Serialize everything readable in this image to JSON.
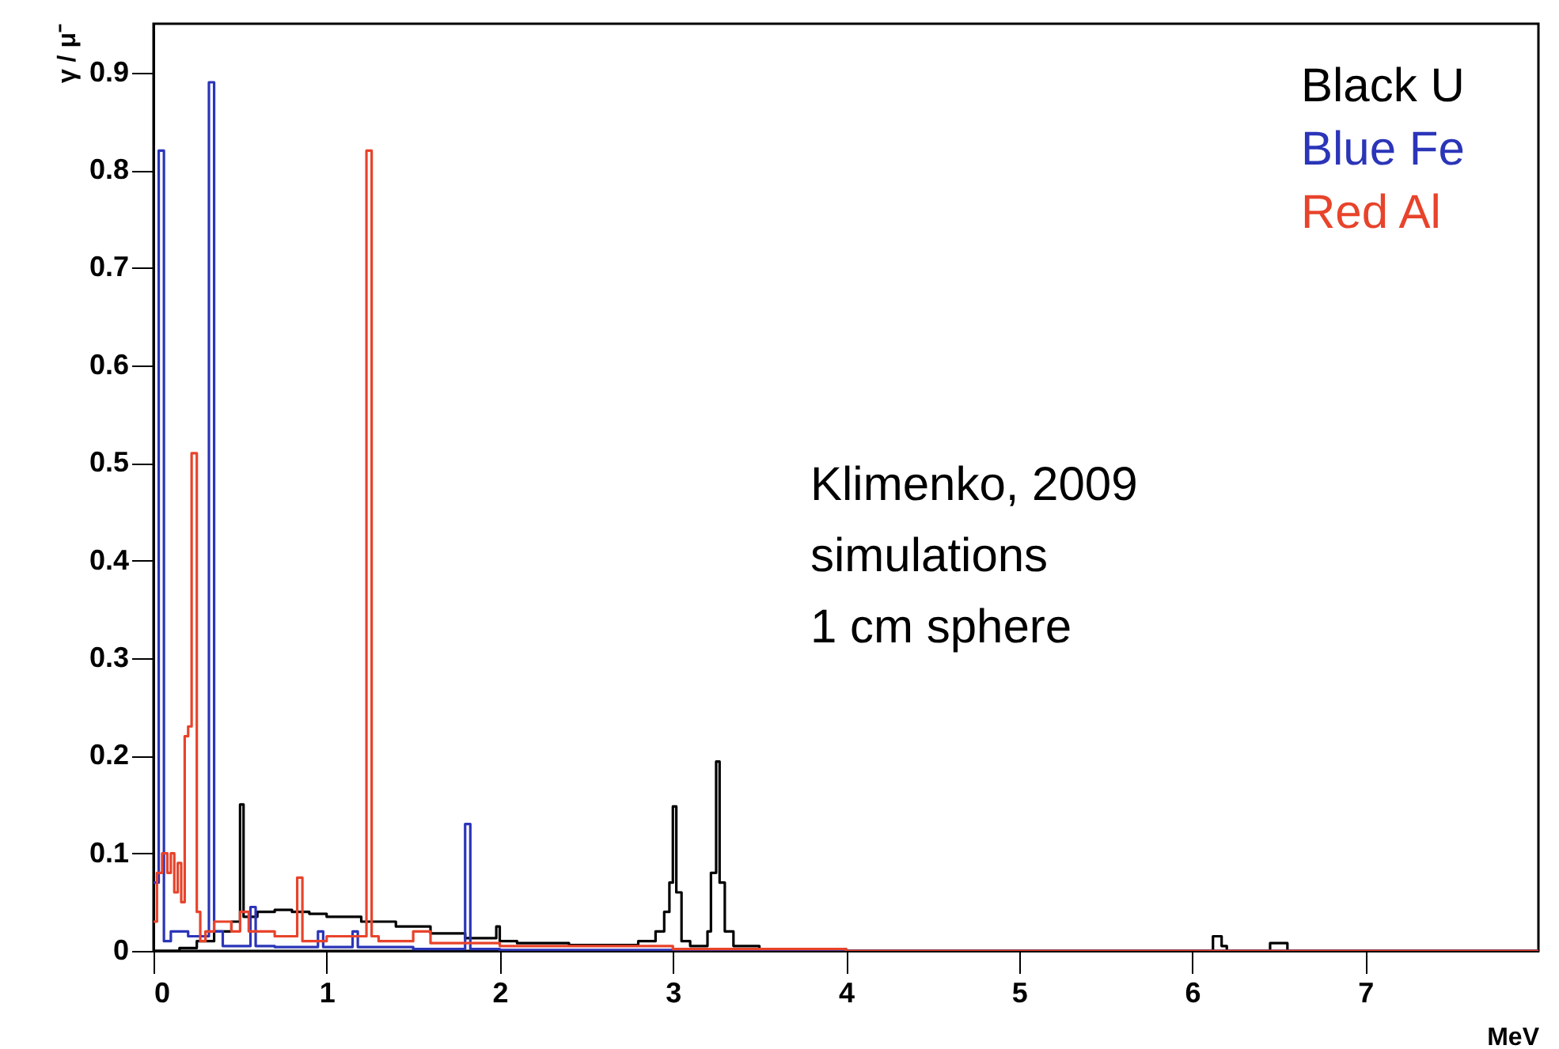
{
  "chart_data": {
    "type": "step",
    "xlabel": "MeV",
    "ylabel": "γ / μ⁻",
    "xlim": [
      0,
      8
    ],
    "xticks": [
      0,
      1,
      2,
      3,
      4,
      5,
      6,
      7
    ],
    "ylim": [
      0,
      0.95
    ],
    "yticks": [
      0,
      0.1,
      0.2,
      0.3,
      0.4,
      0.5,
      0.6,
      0.7,
      0.8,
      0.9
    ],
    "grid": false,
    "legend": "top right",
    "annotations": [
      "Klimenko, 2009",
      "simulations",
      "1 cm sphere"
    ],
    "series": [
      {
        "name": "Black U",
        "color": "#000000",
        "x": [
          0,
          0.15,
          0.25,
          0.35,
          0.45,
          0.5,
          0.52,
          0.6,
          0.7,
          0.8,
          0.9,
          1.0,
          1.2,
          1.4,
          1.6,
          1.8,
          1.98,
          2.0,
          2.1,
          2.4,
          2.8,
          2.9,
          2.95,
          2.98,
          3.0,
          3.02,
          3.05,
          3.1,
          3.2,
          3.22,
          3.25,
          3.27,
          3.3,
          3.35,
          3.5,
          4.0,
          6.12,
          6.17,
          6.2,
          6.45,
          6.5,
          6.55,
          8
        ],
        "values": [
          0,
          0.003,
          0.01,
          0.02,
          0.03,
          0.15,
          0.035,
          0.04,
          0.042,
          0.04,
          0.038,
          0.035,
          0.03,
          0.025,
          0.018,
          0.013,
          0.025,
          0.01,
          0.008,
          0.006,
          0.01,
          0.02,
          0.04,
          0.07,
          0.148,
          0.06,
          0.01,
          0.005,
          0.02,
          0.08,
          0.194,
          0.07,
          0.02,
          0.005,
          0.002,
          0,
          0.015,
          0.005,
          0,
          0.008,
          0.008,
          0,
          0
        ]
      },
      {
        "name": "Blue Fe",
        "color": "#2b35b8",
        "x": [
          0,
          0.03,
          0.06,
          0.1,
          0.2,
          0.32,
          0.35,
          0.4,
          0.56,
          0.59,
          0.7,
          0.95,
          0.98,
          1.15,
          1.18,
          1.5,
          1.8,
          1.83,
          2.0,
          4.0,
          8
        ],
        "values": [
          0.07,
          0.82,
          0.01,
          0.02,
          0.015,
          0.89,
          0.02,
          0.005,
          0.045,
          0.005,
          0.004,
          0.02,
          0.004,
          0.02,
          0.004,
          0.002,
          0.13,
          0.002,
          0.001,
          0,
          0
        ]
      },
      {
        "name": "Red Al",
        "color": "#e8432b",
        "x": [
          0,
          0.02,
          0.05,
          0.08,
          0.1,
          0.12,
          0.14,
          0.16,
          0.18,
          0.2,
          0.22,
          0.25,
          0.27,
          0.3,
          0.35,
          0.45,
          0.5,
          0.55,
          0.7,
          0.83,
          0.86,
          1.0,
          1.23,
          1.26,
          1.3,
          1.5,
          1.6,
          2.0,
          3.0,
          4.0,
          8
        ],
        "values": [
          0.03,
          0.08,
          0.1,
          0.08,
          0.1,
          0.06,
          0.09,
          0.05,
          0.22,
          0.23,
          0.51,
          0.04,
          0.01,
          0.02,
          0.03,
          0.02,
          0.04,
          0.02,
          0.015,
          0.075,
          0.01,
          0.015,
          0.82,
          0.015,
          0.01,
          0.02,
          0.008,
          0.005,
          0.002,
          0,
          0
        ]
      }
    ]
  }
}
